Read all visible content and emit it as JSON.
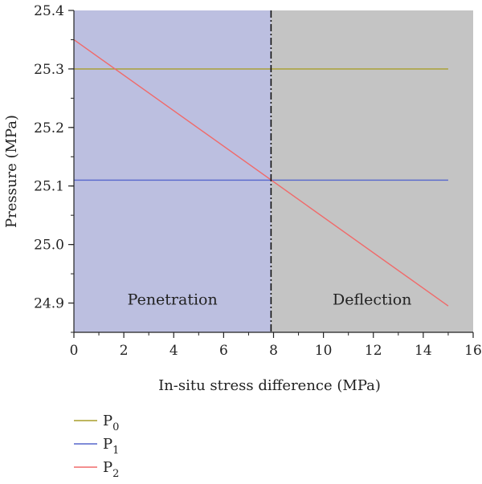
{
  "chart_data": {
    "type": "line",
    "xlabel": "In-situ stress difference (MPa)",
    "ylabel": "Pressure (MPa)",
    "xlim": [
      0,
      16
    ],
    "ylim": [
      24.85,
      25.4
    ],
    "x_ticks": [
      "0",
      "2",
      "4",
      "6",
      "8",
      "10",
      "12",
      "14",
      "16"
    ],
    "y_ticks": [
      "24.9",
      "25.0",
      "25.1",
      "25.2",
      "25.3",
      "25.4"
    ],
    "grid": false,
    "legend_position": "below-left",
    "regions": [
      {
        "label": "Penetration",
        "x_range": [
          0,
          7.9
        ],
        "color": "#bcbfe0"
      },
      {
        "label": "Deflection",
        "x_range": [
          7.9,
          16
        ],
        "color": "#c4c4c4"
      }
    ],
    "divider": {
      "x": 7.9,
      "style": "dash-dot",
      "color": "#111111"
    },
    "series": [
      {
        "name": "P",
        "subscript": "0",
        "color": "#a89d2a",
        "x": [
          0,
          15
        ],
        "y": [
          25.3,
          25.3
        ]
      },
      {
        "name": "P",
        "subscript": "1",
        "color": "#5566cc",
        "x": [
          0,
          15
        ],
        "y": [
          25.11,
          25.11
        ]
      },
      {
        "name": "P",
        "subscript": "2",
        "color": "#f06a6a",
        "x": [
          0,
          15
        ],
        "y": [
          25.35,
          24.895
        ]
      }
    ]
  }
}
